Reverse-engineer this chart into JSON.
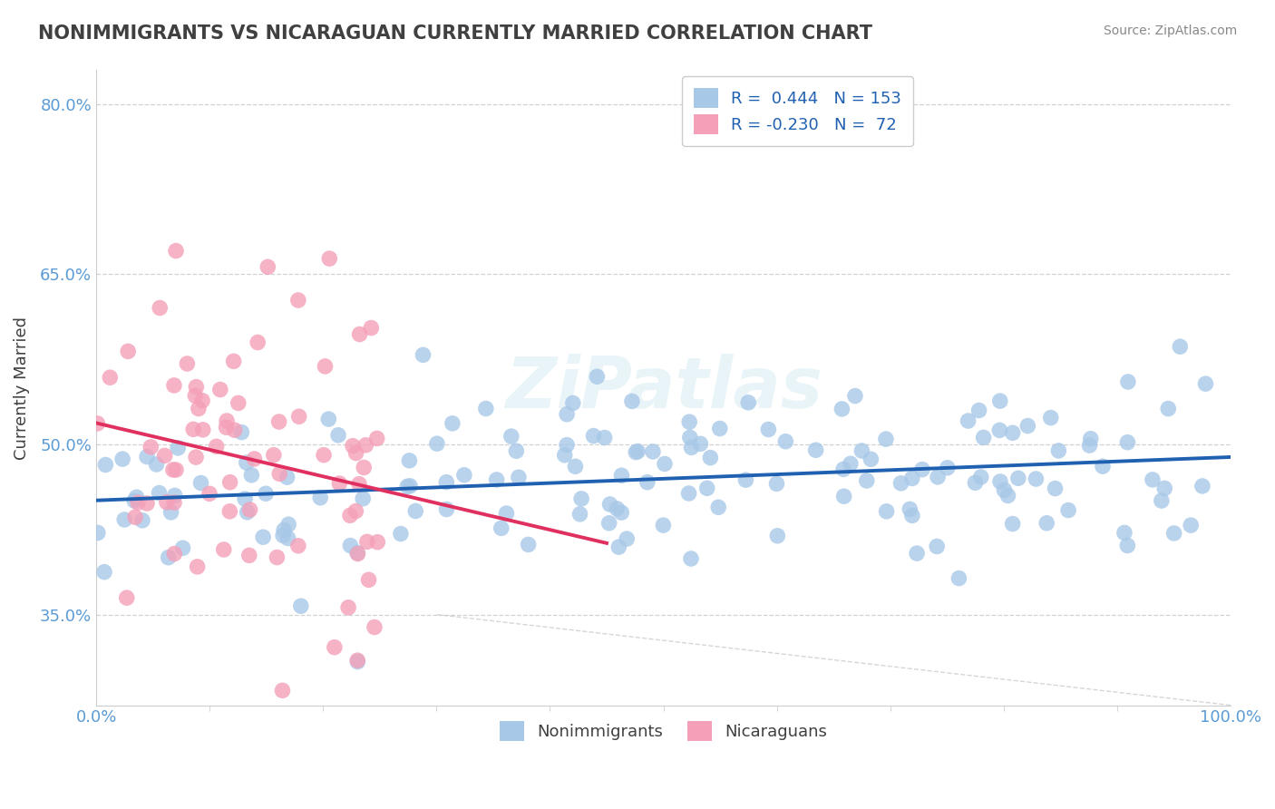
{
  "title": "NONIMMIGRANTS VS NICARAGUAN CURRENTLY MARRIED CORRELATION CHART",
  "source_text": "Source: ZipAtlas.com",
  "ylabel": "Currently Married",
  "x_min": 0.0,
  "x_max": 1.0,
  "y_min": 0.27,
  "y_max": 0.83,
  "y_ticks": [
    0.35,
    0.5,
    0.65,
    0.8
  ],
  "y_tick_labels": [
    "35.0%",
    "50.0%",
    "65.0%",
    "80.0%"
  ],
  "blue_color": "#a8c8e8",
  "pink_color": "#f4a0b8",
  "blue_line_color": "#2060b0",
  "pink_line_color": "#e03060",
  "R_blue": 0.444,
  "N_blue": 153,
  "R_pink": -0.23,
  "N_pink": 72,
  "legend_label_blue": "Nonimmigrants",
  "legend_label_pink": "Nicaraguans",
  "title_color": "#404040",
  "source_color": "#888888",
  "axis_label_color": "#5b9bd5",
  "grid_color": "#cccccc",
  "diag_line_color": "#cccccc",
  "background_color": "#ffffff",
  "watermark": "ZiPatlas",
  "seed": 7
}
